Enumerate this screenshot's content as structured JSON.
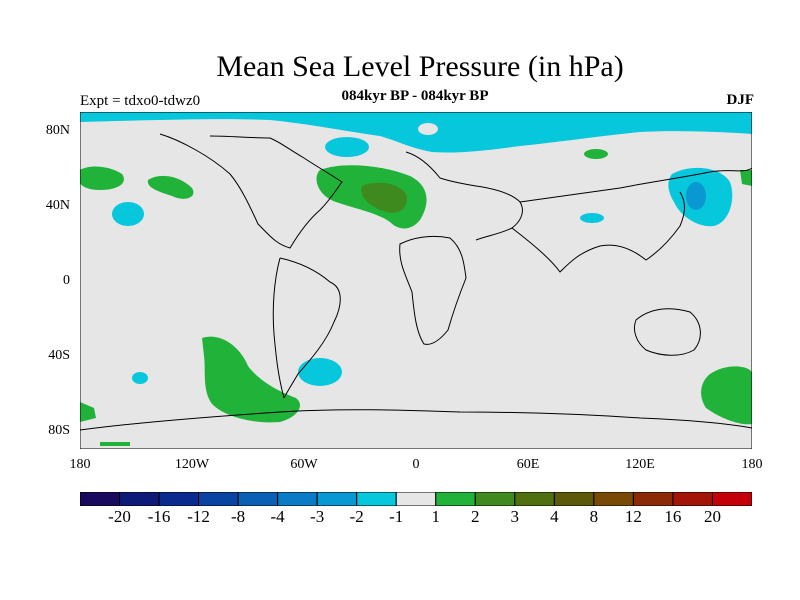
{
  "title": "Mean Sea Level Pressure (in hPa)",
  "subtitle": "084kyr BP - 084kyr BP",
  "experiment_label": "Expt = tdxo0-tdwz0",
  "season": "DJF",
  "axes": {
    "lat_ticks": [
      "80N",
      "40N",
      "0",
      "40S",
      "80S"
    ],
    "lon_ticks": [
      "180",
      "120W",
      "60W",
      "0",
      "60E",
      "120E",
      "180"
    ]
  },
  "colorbar": {
    "colors": [
      "#1a0a5e",
      "#0d1a78",
      "#0a2a90",
      "#0a44a3",
      "#0b5fb5",
      "#0a7bc4",
      "#0a98d2",
      "#07c7dd",
      "#e6e6e6",
      "#21b23a",
      "#3f8a1e",
      "#4f6f10",
      "#5c5a08",
      "#784a06",
      "#8c2a08",
      "#a31508",
      "#c40008"
    ],
    "labels": [
      "-20",
      "-16",
      "-12",
      "-8",
      "-4",
      "-3",
      "-2",
      "-1",
      "1",
      "2",
      "3",
      "4",
      "8",
      "12",
      "16",
      "20"
    ]
  },
  "colors": {
    "background_field": "#e6e6e6",
    "negative_1_2": "#07c7dd",
    "negative_2_3": "#0a98d2",
    "positive_1_2": "#21b23a",
    "positive_2_3": "#3f8a1e",
    "coastline": "#000000"
  }
}
